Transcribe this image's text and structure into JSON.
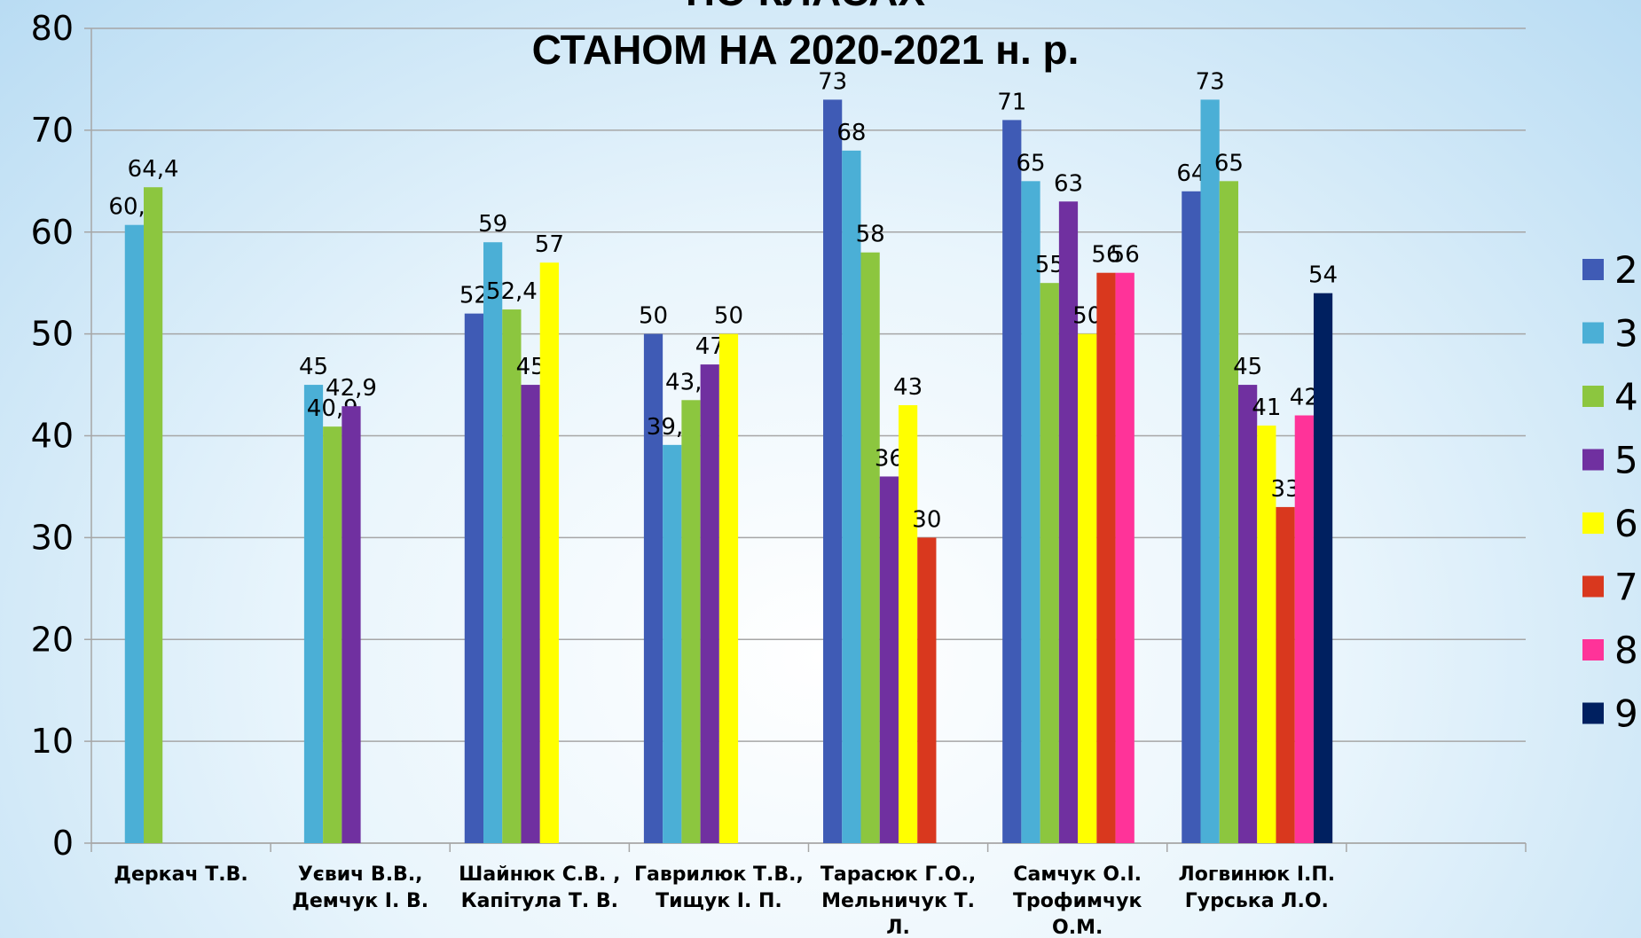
{
  "chart_data": {
    "type": "bar",
    "title": [
      "ПО КЛАСАХ",
      "СТАНОМ НА 2020-2021 н. р."
    ],
    "categories": [
      [
        "Деркач Т.В."
      ],
      [
        "Уєвич В.В.,",
        "Демчук І. В."
      ],
      [
        "Шайнюк С.В. ,",
        "Капітула Т. В."
      ],
      [
        "Гаврилюк Т.В.,",
        "Тищук І. П."
      ],
      [
        "Тарасюк Г.О.,",
        "Мельничук Т.",
        "Л."
      ],
      [
        "Самчук О.І.",
        "Трофимчук",
        "О.М."
      ],
      [
        "Логвинюк І.П.",
        "Гурська Л.О."
      ],
      null
    ],
    "series": [
      {
        "name": "2",
        "color": "#3f5bb5",
        "values": [
          null,
          null,
          52,
          50,
          73,
          71,
          64,
          null
        ],
        "value_labels": [
          null,
          null,
          "52",
          "50",
          "73",
          "71",
          "64",
          null
        ]
      },
      {
        "name": "3",
        "color": "#4bafd6",
        "values": [
          60.7,
          45,
          59,
          39.1,
          68,
          65,
          73,
          null
        ],
        "value_labels": [
          "60,7",
          "45",
          "59",
          "39,1",
          "68",
          "65",
          "73",
          null
        ]
      },
      {
        "name": "4",
        "color": "#8cc63f",
        "values": [
          64.4,
          40.9,
          52.4,
          43.5,
          58,
          55,
          65,
          null
        ],
        "value_labels": [
          "64,4",
          "40,9",
          "52,4",
          "43,5",
          "58",
          "55",
          "65",
          null
        ]
      },
      {
        "name": "5",
        "color": "#7030a0",
        "values": [
          null,
          42.9,
          45,
          47,
          36,
          63,
          45,
          null
        ],
        "value_labels": [
          null,
          "42,9",
          "45",
          "47",
          "36",
          "63",
          "45",
          null
        ]
      },
      {
        "name": "6",
        "color": "#ffff00",
        "values": [
          null,
          null,
          57,
          50,
          43,
          50,
          41,
          null
        ],
        "value_labels": [
          null,
          null,
          "57",
          "50",
          "43",
          "50",
          "41",
          null
        ]
      },
      {
        "name": "7",
        "color": "#d9381e",
        "values": [
          null,
          null,
          null,
          null,
          30,
          56,
          33,
          null
        ],
        "value_labels": [
          null,
          null,
          null,
          null,
          "30",
          "56",
          "33",
          null
        ]
      },
      {
        "name": "8",
        "color": "#ff3399",
        "values": [
          null,
          null,
          null,
          null,
          null,
          56,
          42,
          null
        ],
        "value_labels": [
          null,
          null,
          null,
          null,
          null,
          "56",
          "42",
          null
        ]
      },
      {
        "name": "9",
        "color": "#002060",
        "values": [
          null,
          null,
          null,
          null,
          null,
          null,
          54,
          null
        ],
        "value_labels": [
          null,
          null,
          null,
          null,
          null,
          null,
          "54",
          null
        ]
      }
    ],
    "ylim": [
      0,
      80
    ],
    "yticks": [
      0,
      10,
      20,
      30,
      40,
      50,
      60,
      70,
      80
    ],
    "grid": true,
    "legend": "right"
  }
}
